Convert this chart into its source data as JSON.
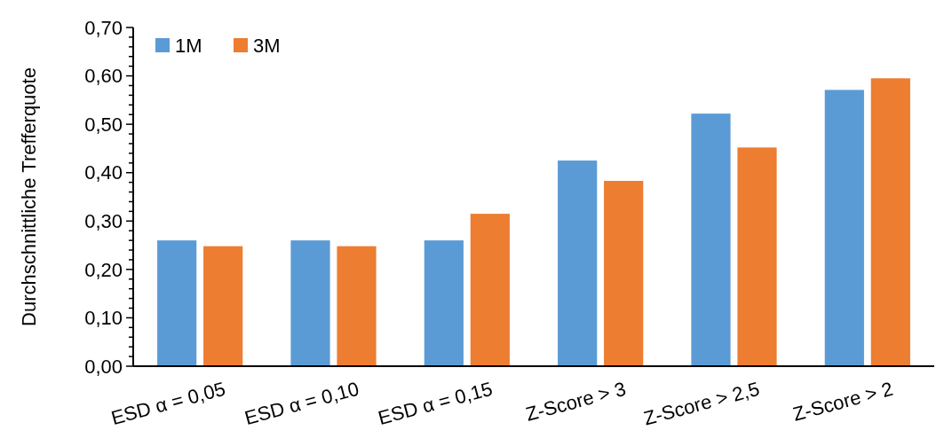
{
  "chart_data": {
    "type": "bar",
    "ylabel": "Durchschnittliche Trefferquote",
    "categories": [
      "ESD α = 0,05",
      "ESD α = 0,10",
      "ESD α = 0,15",
      "Z-Score > 3",
      "Z-Score > 2,5",
      "Z-Score > 2"
    ],
    "series": [
      {
        "name": "1M",
        "color": "#5b9bd5",
        "values": [
          0.26,
          0.26,
          0.26,
          0.425,
          0.522,
          0.571
        ]
      },
      {
        "name": "3M",
        "color": "#ed7d31",
        "values": [
          0.248,
          0.248,
          0.315,
          0.383,
          0.452,
          0.595
        ]
      }
    ],
    "ylim": [
      0,
      0.7
    ],
    "yticks": [
      {
        "value": 0,
        "label": "0,00"
      },
      {
        "value": 0.02,
        "label": null
      },
      {
        "value": 0.04,
        "label": null
      },
      {
        "value": 0.06,
        "label": null
      },
      {
        "value": 0.08,
        "label": null
      },
      {
        "value": 0.1,
        "label": "0,10"
      },
      {
        "value": 0.12,
        "label": null
      },
      {
        "value": 0.14,
        "label": null
      },
      {
        "value": 0.16,
        "label": null
      },
      {
        "value": 0.18,
        "label": null
      },
      {
        "value": 0.2,
        "label": "0,20"
      },
      {
        "value": 0.22,
        "label": null
      },
      {
        "value": 0.24,
        "label": null
      },
      {
        "value": 0.26,
        "label": null
      },
      {
        "value": 0.28,
        "label": null
      },
      {
        "value": 0.3,
        "label": "0,30"
      },
      {
        "value": 0.32,
        "label": null
      },
      {
        "value": 0.34,
        "label": null
      },
      {
        "value": 0.36,
        "label": null
      },
      {
        "value": 0.38,
        "label": null
      },
      {
        "value": 0.4,
        "label": "0,40"
      },
      {
        "value": 0.42,
        "label": null
      },
      {
        "value": 0.44,
        "label": null
      },
      {
        "value": 0.46,
        "label": null
      },
      {
        "value": 0.48,
        "label": null
      },
      {
        "value": 0.5,
        "label": "0,50"
      },
      {
        "value": 0.52,
        "label": null
      },
      {
        "value": 0.54,
        "label": null
      },
      {
        "value": 0.56,
        "label": null
      },
      {
        "value": 0.58,
        "label": null
      },
      {
        "value": 0.6,
        "label": "0,60"
      },
      {
        "value": 0.62,
        "label": null
      },
      {
        "value": 0.64,
        "label": null
      },
      {
        "value": 0.66,
        "label": null
      },
      {
        "value": 0.68,
        "label": null
      },
      {
        "value": 0.7,
        "label": "0,70"
      }
    ],
    "grid": false,
    "legend": "top left"
  }
}
